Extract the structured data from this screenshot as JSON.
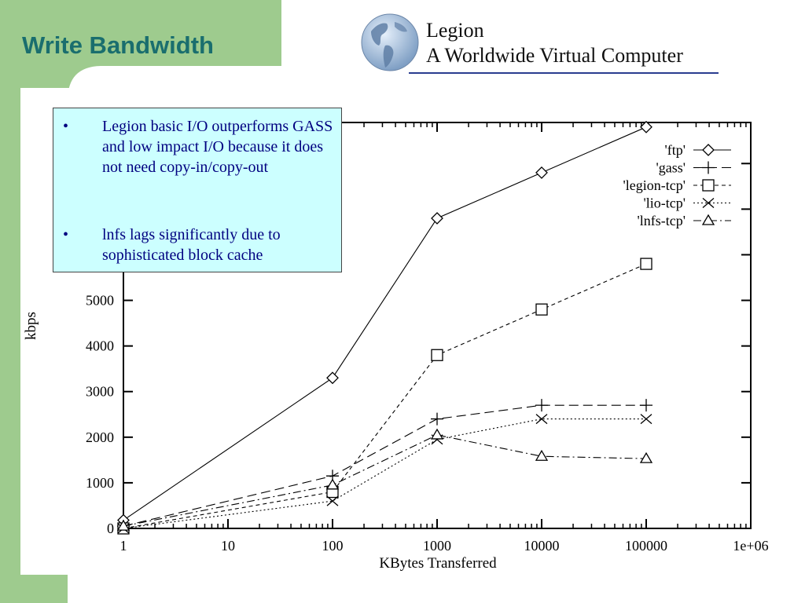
{
  "slide": {
    "title": "Write Bandwidth",
    "colors": {
      "left_bar": "#9ecb8e",
      "title": "#1a6e6e",
      "callout_bg": "#ccffff",
      "callout_text": "#000080",
      "logo_rule": "#2a3d8f"
    }
  },
  "logo": {
    "line1": "Legion",
    "line2": "A Worldwide Virtual Computer",
    "icon": "globe-icon"
  },
  "callout": {
    "bullets": [
      "Legion basic I/O outperforms GASS and low impact I/O because it does not need copy-in/copy-out",
      "lnfs lags significantly due to sophisticated block cache"
    ]
  },
  "chart_data": {
    "type": "line",
    "xlabel": "KBytes Transferred",
    "ylabel": "kbps",
    "xscale": "log",
    "xlim": [
      1,
      1000000
    ],
    "ylim": [
      0,
      8900
    ],
    "x_ticks": [
      "1",
      "10",
      "100",
      "1000",
      "10000",
      "100000",
      "1e+06"
    ],
    "y_ticks": [
      "0",
      "1000",
      "2000",
      "3000",
      "4000",
      "5000"
    ],
    "grid": false,
    "legend_position": "top-right",
    "series": [
      {
        "name": "'ftp'",
        "marker": "diamond",
        "dash": "solid",
        "x": [
          1,
          100,
          1000,
          10000,
          100000
        ],
        "y": [
          180,
          3300,
          6800,
          7800,
          8800
        ]
      },
      {
        "name": "'gass'",
        "marker": "plus",
        "dash": "dashed",
        "x": [
          1,
          100,
          1000,
          10000,
          100000
        ],
        "y": [
          50,
          1150,
          2400,
          2700,
          2700
        ]
      },
      {
        "name": "'legion-tcp'",
        "marker": "square",
        "dash": "short-dashed",
        "x": [
          1,
          100,
          1000,
          10000,
          100000
        ],
        "y": [
          0,
          800,
          3800,
          4800,
          5800
        ]
      },
      {
        "name": "'lio-tcp'",
        "marker": "cross",
        "dash": "dotted",
        "x": [
          1,
          100,
          1000,
          10000,
          100000
        ],
        "y": [
          0,
          600,
          1950,
          2400,
          2400
        ]
      },
      {
        "name": "'lnfs-tcp'",
        "marker": "triangle",
        "dash": "dash-dot",
        "x": [
          1,
          100,
          1000,
          10000,
          100000
        ],
        "y": [
          50,
          950,
          2050,
          1580,
          1530
        ]
      }
    ]
  }
}
